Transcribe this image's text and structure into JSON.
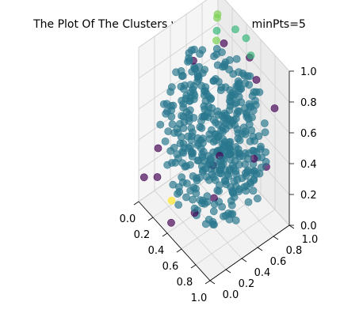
{
  "chart_data": {
    "type": "scatter",
    "dimensions": 3,
    "title": "The Plot Of The Clusters with eps=0.5, minPts=5",
    "xlabel": "",
    "ylabel": "",
    "zlabel": "",
    "xlim": [
      0,
      1
    ],
    "ylim": [
      0,
      1
    ],
    "zlim": [
      0,
      1
    ],
    "x_ticks": [
      "0.0",
      "0.2",
      "0.4",
      "0.6",
      "0.8",
      "1.0"
    ],
    "y_ticks": [
      "0.0",
      "0.2",
      "0.4",
      "0.6",
      "0.8",
      "1.0"
    ],
    "z_ticks": [
      "0.0",
      "0.2",
      "0.4",
      "0.6",
      "0.8",
      "1.0"
    ],
    "grid": true,
    "colormap": "viridis",
    "cluster_colors": {
      "noise": "#440154",
      "main": "#2a788e",
      "cluster_a": "#35b779",
      "cluster_b": "#7ad151",
      "cluster_c": "#fde725"
    },
    "point_count_main": 420,
    "highlighted_points": [
      {
        "x": 0.05,
        "y": 0.95,
        "z": 0.9,
        "cluster": "cluster_b"
      },
      {
        "x": 0.1,
        "y": 0.9,
        "z": 0.92,
        "cluster": "cluster_b"
      },
      {
        "x": 0.15,
        "y": 0.85,
        "z": 0.88,
        "cluster": "cluster_a"
      },
      {
        "x": 0.3,
        "y": 0.95,
        "z": 0.93,
        "cluster": "cluster_a"
      },
      {
        "x": 0.45,
        "y": 0.95,
        "z": 0.95,
        "cluster": "cluster_a"
      },
      {
        "x": 0.55,
        "y": 0.92,
        "z": 0.9,
        "cluster": "cluster_a"
      },
      {
        "x": 0.2,
        "y": 0.8,
        "z": 0.86,
        "cluster": "cluster_b"
      },
      {
        "x": 0.35,
        "y": 0.1,
        "z": 0.15,
        "cluster": "cluster_c"
      },
      {
        "x": 0.1,
        "y": 0.6,
        "z": 0.75,
        "cluster": "noise"
      },
      {
        "x": 0.25,
        "y": 0.85,
        "z": 0.85,
        "cluster": "noise"
      },
      {
        "x": 0.5,
        "y": 0.95,
        "z": 0.85,
        "cluster": "noise"
      },
      {
        "x": 0.65,
        "y": 0.9,
        "z": 0.8,
        "cluster": "noise"
      },
      {
        "x": 0.85,
        "y": 0.95,
        "z": 0.7,
        "cluster": "noise"
      },
      {
        "x": 0.95,
        "y": 0.6,
        "z": 0.55,
        "cluster": "noise"
      },
      {
        "x": 0.8,
        "y": 0.3,
        "z": 0.6,
        "cluster": "noise"
      },
      {
        "x": 0.6,
        "y": 0.4,
        "z": 0.4,
        "cluster": "noise"
      },
      {
        "x": 0.05,
        "y": 0.2,
        "z": 0.3,
        "cluster": "noise"
      },
      {
        "x": 0.15,
        "y": 0.1,
        "z": 0.2,
        "cluster": "noise"
      },
      {
        "x": 0.4,
        "y": 0.05,
        "z": 0.05,
        "cluster": "noise"
      },
      {
        "x": 0.45,
        "y": 0.3,
        "z": 0.05,
        "cluster": "noise"
      },
      {
        "x": 0.5,
        "y": 0.5,
        "z": 0.1,
        "cluster": "noise"
      },
      {
        "x": 0.02,
        "y": 0.05,
        "z": 0.15,
        "cluster": "noise"
      },
      {
        "x": 0.9,
        "y": 0.8,
        "z": 0.4,
        "cluster": "noise"
      }
    ]
  }
}
